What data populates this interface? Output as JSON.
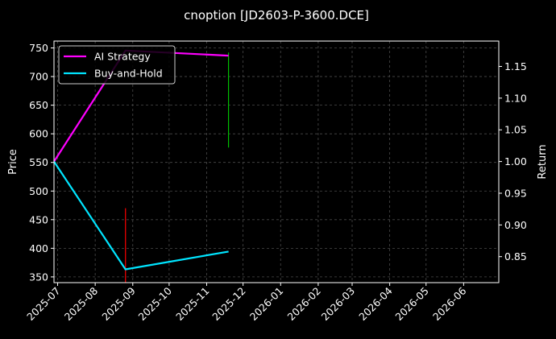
{
  "chart_data": {
    "type": "line",
    "title": "cnoption [JD2603-P-3600.DCE]",
    "left_axis": {
      "label": "Price",
      "ylim": [
        340,
        762
      ],
      "ticks": [
        350,
        400,
        450,
        500,
        550,
        600,
        650,
        700,
        750
      ],
      "tick_labels": [
        "350",
        "400",
        "450",
        "500",
        "550",
        "600",
        "650",
        "700",
        "750"
      ]
    },
    "right_axis": {
      "label": "Return",
      "ylim": [
        0.809,
        1.19
      ],
      "ticks": [
        0.85,
        0.9,
        0.95,
        1.0,
        1.05,
        1.1,
        1.15
      ],
      "tick_labels": [
        "0.85",
        "0.90",
        "0.95",
        "1.00",
        "1.05",
        "1.10",
        "1.15"
      ]
    },
    "x_axis": {
      "xlim": [
        "2025-06-28",
        "2026-06-30"
      ],
      "ticks": [
        "2025-07-01",
        "2025-08-01",
        "2025-09-01",
        "2025-10-01",
        "2025-11-01",
        "2025-12-01",
        "2026-01-01",
        "2026-02-01",
        "2026-03-01",
        "2026-04-01",
        "2026-05-01",
        "2026-06-01"
      ],
      "tick_labels": [
        "2025-07",
        "2025-08",
        "2025-09",
        "2025-10",
        "2025-11",
        "2025-12",
        "2026-01",
        "2026-02",
        "2026-03",
        "2026-04",
        "2026-05",
        "2026-06"
      ]
    },
    "grid": true,
    "legend_position": "top-left",
    "series": [
      {
        "name": "AI Strategy",
        "axis": "right",
        "color": "#ff00ff",
        "x": [
          "2025-06-28",
          "2025-08-26",
          "2025-11-19"
        ],
        "values": [
          1.0,
          1.175,
          1.167
        ]
      },
      {
        "name": "Buy-and-Hold",
        "axis": "right",
        "color": "#00e5ff",
        "x": [
          "2025-06-28",
          "2025-08-26",
          "2025-11-19"
        ],
        "values": [
          1.0,
          0.83,
          0.858
        ]
      }
    ],
    "price_marks": [
      {
        "date": "2025-08-26",
        "low": 339,
        "high": 470,
        "color": "#ff0000"
      },
      {
        "date": "2025-11-19",
        "low": 576,
        "high": 742,
        "color": "#00c000"
      }
    ],
    "colors": {
      "background": "#000000",
      "grid": "#4a4a4a",
      "axis": "#ffffff"
    }
  }
}
